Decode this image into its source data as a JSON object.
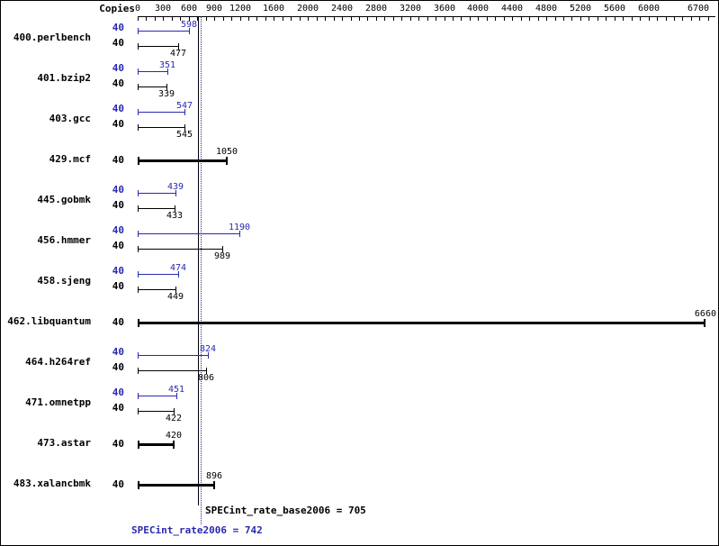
{
  "chart_data": {
    "type": "bar",
    "orientation": "horizontal",
    "copies_header": "Copies",
    "colors": {
      "peak": "#2929b0",
      "base": "#000000"
    },
    "x_axis": {
      "min": 0,
      "max": 6800,
      "minor_tick_step": 100,
      "labeled_ticks": [
        0,
        300,
        600,
        900,
        1200,
        1600,
        2000,
        2400,
        2800,
        3200,
        3600,
        4000,
        4400,
        4800,
        5200,
        5600,
        6000,
        6700
      ]
    },
    "benchmarks": [
      {
        "name": "400.perlbench",
        "copies": 40,
        "peak": 598,
        "base": 477
      },
      {
        "name": "401.bzip2",
        "copies": 40,
        "peak": 351,
        "base": 339
      },
      {
        "name": "403.gcc",
        "copies": 40,
        "peak": 547,
        "base": 545
      },
      {
        "name": "429.mcf",
        "copies": 40,
        "value": 1050
      },
      {
        "name": "445.gobmk",
        "copies": 40,
        "peak": 439,
        "base": 433
      },
      {
        "name": "456.hmmer",
        "copies": 40,
        "peak": 1190,
        "base": 989
      },
      {
        "name": "458.sjeng",
        "copies": 40,
        "peak": 474,
        "base": 449
      },
      {
        "name": "462.libquantum",
        "copies": 40,
        "value": 6660
      },
      {
        "name": "464.h264ref",
        "copies": 40,
        "peak": 824,
        "base": 806
      },
      {
        "name": "471.omnetpp",
        "copies": 40,
        "peak": 451,
        "base": 422
      },
      {
        "name": "473.astar",
        "copies": 40,
        "value": 420
      },
      {
        "name": "483.xalancbmk",
        "copies": 40,
        "value": 896
      }
    ],
    "reference_lines": [
      {
        "label": "SPECint_rate_base2006 = 705",
        "value": 705,
        "style": "solid",
        "color": "#000000"
      },
      {
        "label": "SPECint_rate2006 = 742",
        "value": 742,
        "style": "dotted",
        "color": "#2929b0"
      }
    ]
  }
}
